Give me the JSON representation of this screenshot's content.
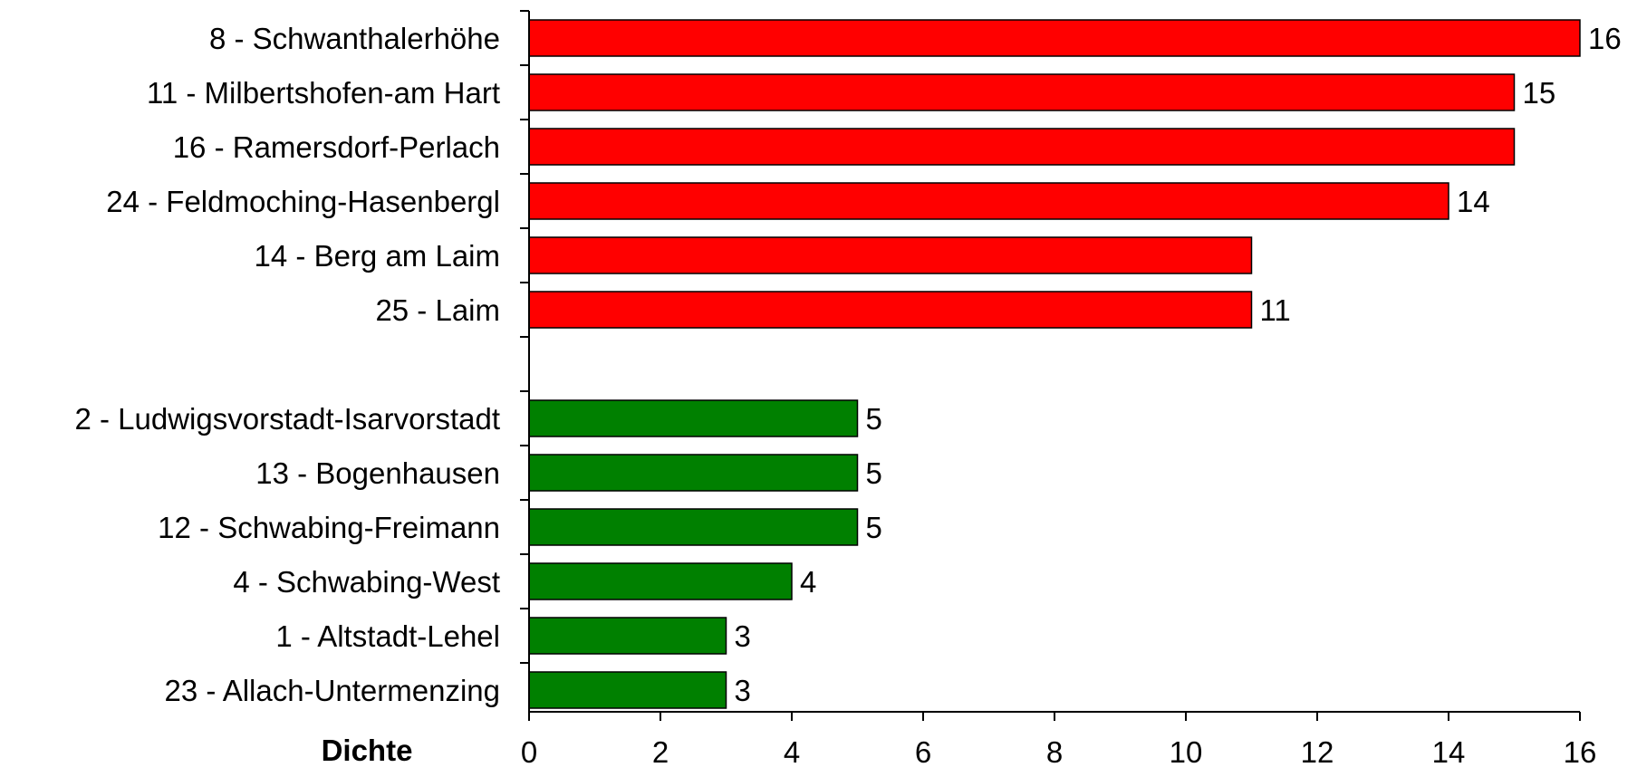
{
  "chart_data": {
    "type": "bar",
    "orientation": "horizontal",
    "title": "",
    "xlabel": "Dichte",
    "ylabel": "",
    "xlim": [
      0,
      16
    ],
    "x_ticks": [
      "0",
      "2",
      "4",
      "6",
      "8",
      "10",
      "12",
      "14",
      "16"
    ],
    "grid": false,
    "legend": "none",
    "groups": [
      {
        "color": "#ff0000",
        "bars": [
          {
            "category": "8 - Schwanthalerhöhe",
            "value": 16,
            "label": "16"
          },
          {
            "category": "11 - Milbertshofen-am Hart",
            "value": 15,
            "label": "15"
          },
          {
            "category": "16 - Ramersdorf-Perlach",
            "value": 15,
            "label": ""
          },
          {
            "category": "24 - Feldmoching-Hasenbergl",
            "value": 14,
            "label": "14"
          },
          {
            "category": "14 - Berg am Laim",
            "value": 11,
            "label": ""
          },
          {
            "category": "25 - Laim",
            "value": 11,
            "label": "11"
          }
        ]
      },
      {
        "color": "#008000",
        "bars": [
          {
            "category": "2 - Ludwigsvorstadt-Isarvorstadt",
            "value": 5,
            "label": "5"
          },
          {
            "category": "13 - Bogenhausen",
            "value": 5,
            "label": "5"
          },
          {
            "category": "12 - Schwabing-Freimann",
            "value": 5,
            "label": "5"
          },
          {
            "category": "4 - Schwabing-West",
            "value": 4,
            "label": "4"
          },
          {
            "category": "1 - Altstadt-Lehel",
            "value": 3,
            "label": "3"
          },
          {
            "category": "23 - Allach-Untermenzing",
            "value": 3,
            "label": "3"
          }
        ]
      }
    ]
  }
}
